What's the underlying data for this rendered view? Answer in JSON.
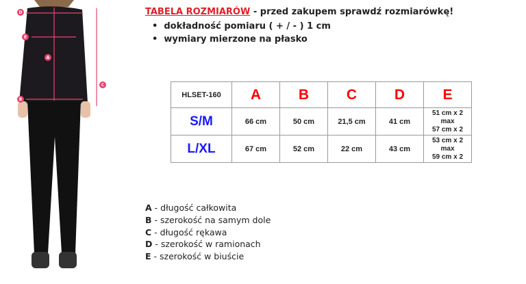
{
  "header": {
    "title": "TABELA ROZMIARÓW",
    "rest": " - przed zakupem sprawdź rozmiarówkę!"
  },
  "bullets": [
    "dokładność pomiaru ( + / - ) 1 cm",
    "wymiary mierzone na płasko"
  ],
  "table": {
    "model": "HLSET-160",
    "columns": [
      "A",
      "B",
      "C",
      "D",
      "E"
    ],
    "rows": [
      {
        "size": "S/M",
        "values": [
          "66 cm",
          "50 cm",
          "21,5 cm",
          "41 cm"
        ],
        "e": [
          "51 cm x 2",
          "max",
          "57 cm x 2"
        ]
      },
      {
        "size": "L/XL",
        "values": [
          "67 cm",
          "52 cm",
          "22 cm",
          "43 cm"
        ],
        "e": [
          "53 cm x 2",
          "max",
          "59 cm x 2"
        ]
      }
    ]
  },
  "legend": [
    {
      "k": "A",
      "t": " - długość całkowita"
    },
    {
      "k": "B",
      "t": " - szerokość na samym dole"
    },
    {
      "k": "C",
      "t": " - długość rękawa"
    },
    {
      "k": "D",
      "t": " - szerokość w ramionach"
    },
    {
      "k": "E",
      "t": " - szerokość w biuście"
    }
  ],
  "figure": {
    "markers": [
      "A",
      "B",
      "C",
      "D",
      "E"
    ],
    "accent": "#e8436e"
  }
}
